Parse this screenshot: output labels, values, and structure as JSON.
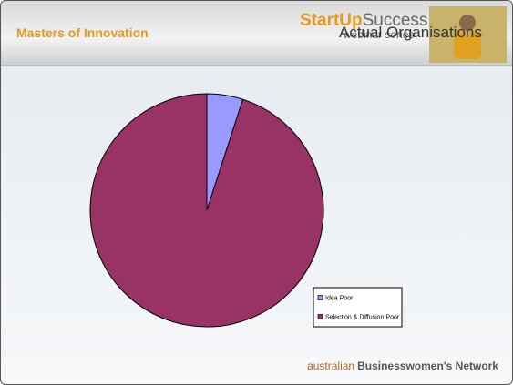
{
  "header": {
    "title": "Masters of Innovation",
    "logo_start": "StartUp",
    "logo_end": "Success",
    "logo_subtitle": "webinar series",
    "slide_heading": "Actual Organisations"
  },
  "footer": {
    "brand_light": "australian",
    "brand_bold": "Businesswomen's Network"
  },
  "chart_data": {
    "type": "pie",
    "categories": [
      "Idea Poor",
      "Selection & Diffusion Poor"
    ],
    "values": [
      5,
      95
    ],
    "colors": [
      "#9999ff",
      "#993366"
    ],
    "legend": "lower right"
  }
}
